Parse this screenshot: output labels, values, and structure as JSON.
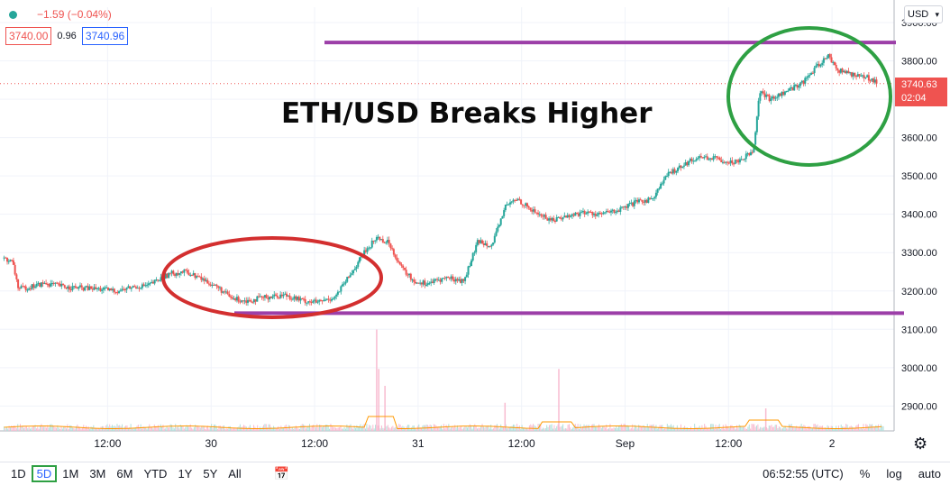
{
  "legend": {
    "change": "−1.59 (−0.04%)",
    "bid": "3740.00",
    "spread": "0.96",
    "ask": "3740.96"
  },
  "currency": "USD",
  "headline": "ETH/USD Breaks Higher",
  "last_price": {
    "value": "3740.63",
    "countdown": "02:04"
  },
  "toolbar": {
    "timeframes": [
      "1D",
      "5D",
      "1M",
      "3M",
      "6M",
      "YTD",
      "1Y",
      "5Y",
      "All"
    ],
    "active_timeframe": "5D",
    "clock": "06:52:55 (UTC)",
    "percent": "%",
    "log": "log",
    "auto": "auto"
  },
  "colors": {
    "up": "#26a69a",
    "down": "#ef5350",
    "annotation_purple": "#9c3fa8",
    "annotation_green": "#2ea043",
    "annotation_red": "#d32f2f"
  },
  "chart_data": {
    "type": "candlestick",
    "y_ticks": [
      2900,
      3000,
      3100,
      3200,
      3300,
      3400,
      3500,
      3600,
      3700,
      3800,
      3900
    ],
    "ylim": [
      2835,
      3940
    ],
    "x_ticks": [
      {
        "label": "12:00",
        "t": 0.5
      },
      {
        "label": "30",
        "t": 1.0
      },
      {
        "label": "12:00",
        "t": 1.5
      },
      {
        "label": "31",
        "t": 2.0
      },
      {
        "label": "12:00",
        "t": 2.5
      },
      {
        "label": "Sep",
        "t": 3.0
      },
      {
        "label": "12:00",
        "t": 3.5
      },
      {
        "label": "2",
        "t": 4.0
      }
    ],
    "xlim": [
      -0.02,
      4.3
    ],
    "price_path": [
      [
        0.0,
        3285
      ],
      [
        0.04,
        3275
      ],
      [
        0.07,
        3205
      ],
      [
        0.12,
        3210
      ],
      [
        0.2,
        3220
      ],
      [
        0.3,
        3210
      ],
      [
        0.45,
        3205
      ],
      [
        0.55,
        3200
      ],
      [
        0.62,
        3210
      ],
      [
        0.7,
        3215
      ],
      [
        0.8,
        3245
      ],
      [
        0.88,
        3250
      ],
      [
        0.96,
        3230
      ],
      [
        1.03,
        3210
      ],
      [
        1.1,
        3180
      ],
      [
        1.18,
        3175
      ],
      [
        1.28,
        3185
      ],
      [
        1.36,
        3190
      ],
      [
        1.44,
        3175
      ],
      [
        1.52,
        3170
      ],
      [
        1.6,
        3185
      ],
      [
        1.67,
        3240
      ],
      [
        1.74,
        3300
      ],
      [
        1.8,
        3340
      ],
      [
        1.86,
        3325
      ],
      [
        1.92,
        3260
      ],
      [
        1.98,
        3225
      ],
      [
        2.05,
        3220
      ],
      [
        2.14,
        3235
      ],
      [
        2.22,
        3225
      ],
      [
        2.29,
        3330
      ],
      [
        2.36,
        3320
      ],
      [
        2.42,
        3420
      ],
      [
        2.48,
        3440
      ],
      [
        2.55,
        3410
      ],
      [
        2.64,
        3385
      ],
      [
        2.72,
        3395
      ],
      [
        2.8,
        3405
      ],
      [
        2.88,
        3400
      ],
      [
        2.97,
        3410
      ],
      [
        3.05,
        3430
      ],
      [
        3.13,
        3440
      ],
      [
        3.2,
        3500
      ],
      [
        3.28,
        3530
      ],
      [
        3.36,
        3550
      ],
      [
        3.44,
        3545
      ],
      [
        3.52,
        3535
      ],
      [
        3.58,
        3550
      ],
      [
        3.62,
        3570
      ],
      [
        3.65,
        3720
      ],
      [
        3.7,
        3700
      ],
      [
        3.78,
        3720
      ],
      [
        3.86,
        3745
      ],
      [
        3.92,
        3780
      ],
      [
        3.98,
        3815
      ],
      [
        4.03,
        3775
      ],
      [
        4.1,
        3765
      ],
      [
        4.18,
        3755
      ],
      [
        4.22,
        3745
      ]
    ],
    "volume_spikes": [
      {
        "t": 1.8,
        "level": 0.9
      },
      {
        "t": 1.81,
        "level": 0.55
      },
      {
        "t": 1.84,
        "level": 0.4
      },
      {
        "t": 2.68,
        "level": 0.55
      },
      {
        "t": 3.68,
        "level": 0.2
      },
      {
        "t": 2.42,
        "level": 0.25
      }
    ],
    "annotations": {
      "resistance_line": 3848,
      "support_line": 3142
    }
  }
}
